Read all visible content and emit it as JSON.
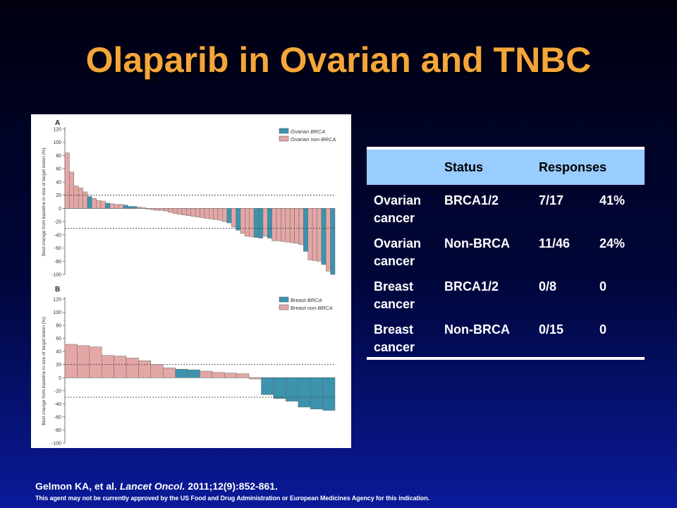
{
  "title": "Olaparib in Ovarian and TNBC",
  "chart_data": [
    {
      "type": "bar",
      "panel": "A",
      "ylabel": "Best change from baseline in size of target lesion (%)",
      "ylim": [
        -100,
        120
      ],
      "yticks": [
        120,
        100,
        80,
        60,
        40,
        20,
        0,
        -20,
        -40,
        -60,
        -80,
        -100
      ],
      "reference_lines": [
        20,
        -30
      ],
      "legend": [
        "Ovarian BRCA",
        "Ovarian non-BRCA"
      ],
      "colors": {
        "Ovarian BRCA": "#3c93ad",
        "Ovarian non-BRCA": "#e3a7a5"
      },
      "values": [
        84,
        55,
        34,
        31,
        25,
        18,
        15,
        12,
        11,
        8,
        7,
        6,
        6,
        5,
        3,
        3,
        2,
        1,
        -1,
        -2,
        -3,
        -3,
        -4,
        -6,
        -8,
        -9,
        -10,
        -11,
        -12,
        -13,
        -14,
        -15,
        -16,
        -17,
        -18,
        -20,
        -22,
        -28,
        -33,
        -38,
        -42,
        -43,
        -44,
        -45,
        -42,
        -45,
        -49,
        -49,
        -50,
        -51,
        -52,
        -53,
        -55,
        -65,
        -78,
        -79,
        -80,
        -85,
        -95,
        -100
      ],
      "series_membership": [
        "non",
        "non",
        "non",
        "non",
        "non",
        "brca",
        "non",
        "non",
        "non",
        "brca",
        "non",
        "non",
        "non",
        "brca",
        "brca",
        "brca",
        "non",
        "non",
        "non",
        "non",
        "non",
        "non",
        "non",
        "non",
        "non",
        "non",
        "non",
        "non",
        "non",
        "non",
        "non",
        "non",
        "non",
        "non",
        "non",
        "non",
        "brca",
        "non",
        "brca",
        "non",
        "non",
        "non",
        "brca",
        "brca",
        "non",
        "brca",
        "non",
        "non",
        "non",
        "non",
        "non",
        "non",
        "non",
        "brca",
        "non",
        "non",
        "non",
        "brca",
        "non",
        "brca"
      ]
    },
    {
      "type": "bar",
      "panel": "B",
      "ylabel": "Best change from baseline in size of target lesion (%)",
      "ylim": [
        -100,
        120
      ],
      "yticks": [
        120,
        100,
        80,
        60,
        40,
        20,
        0,
        -20,
        -40,
        -60,
        -80,
        -100
      ],
      "reference_lines": [
        20,
        -30
      ],
      "legend": [
        "Breast BRCA",
        "Breast non-BRCA"
      ],
      "colors": {
        "Breast BRCA": "#3c93ad",
        "Breast non-BRCA": "#e3a7a5"
      },
      "values": [
        51,
        49,
        47,
        34,
        33,
        30,
        26,
        20,
        15,
        13,
        12,
        10,
        8,
        7,
        6,
        -2,
        -26,
        -32,
        -36,
        -45,
        -48,
        -50
      ],
      "series_membership": [
        "non",
        "non",
        "non",
        "non",
        "non",
        "non",
        "non",
        "non",
        "non",
        "brca",
        "brca",
        "non",
        "non",
        "non",
        "non",
        "non",
        "brca",
        "brca",
        "brca",
        "brca",
        "brca",
        "brca"
      ]
    }
  ],
  "figure": {
    "label_a": "A",
    "label_b": "B",
    "legend_a": {
      "brca_prefix": "Ovarian ",
      "brca_em": "BRCA",
      "non_prefix": "Ovarian non-",
      "non_em": "BRCA"
    },
    "legend_b": {
      "brca_prefix": "Breast ",
      "brca_em": "BRCA",
      "non_prefix": "Breast non-",
      "non_em": "BRCA"
    }
  },
  "table": {
    "headers": [
      "",
      "Status",
      "Responses",
      ""
    ],
    "rows": [
      {
        "group_l1": "Ovarian",
        "group_l2": "cancer",
        "status": "BRCA1/2",
        "ratio": "7/17",
        "percent": "41%"
      },
      {
        "group_l1": "Ovarian",
        "group_l2": "cancer",
        "status": "Non-BRCA",
        "ratio": "11/46",
        "percent": "24%"
      },
      {
        "group_l1": "Breast",
        "group_l2": "cancer",
        "status": "BRCA1/2",
        "ratio": "0/8",
        "percent": "0"
      },
      {
        "group_l1": "Breast",
        "group_l2": "cancer",
        "status": "Non-BRCA",
        "ratio": "0/15",
        "percent": "0"
      }
    ]
  },
  "reference": {
    "authors": "Gelmon KA, et al. ",
    "journal": "Lancet Oncol.",
    "citation": " 2011;12(9):852-861."
  },
  "disclaimer": "This agent may not be currently approved by the US Food and Drug Administration or European Medicines Agency for this indication."
}
